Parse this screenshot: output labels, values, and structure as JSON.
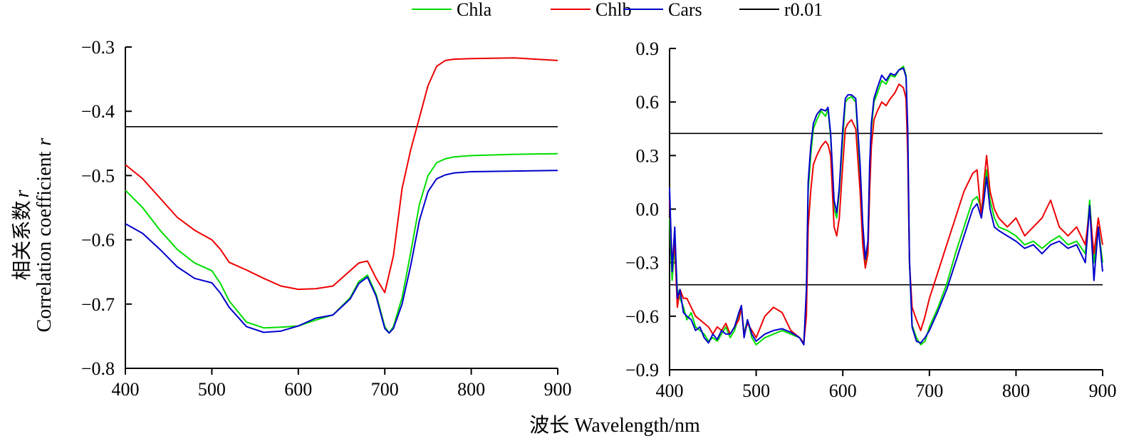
{
  "legend": [
    {
      "label": "Chla",
      "color": "#00dd00"
    },
    {
      "label": "Chlb",
      "color": "#ee0000"
    },
    {
      "label": "Cars",
      "color": "#0000cc"
    },
    {
      "label": "r0.01",
      "color": "#000000"
    }
  ],
  "ylabel_cn": "相关系数",
  "ylabel_en": "Correlation coefficient",
  "ylabel_var": "r",
  "xlabel": "波长 Wavelength/nm",
  "chart_data": [
    {
      "type": "line",
      "panel": "left",
      "xlim": [
        400,
        900
      ],
      "ylim": [
        -0.8,
        -0.3
      ],
      "xticks": [
        400,
        500,
        600,
        700,
        800,
        900
      ],
      "yticks": [
        -0.8,
        -0.7,
        -0.6,
        -0.5,
        -0.4,
        -0.3
      ],
      "xtick_labels": [
        "400",
        "500",
        "600",
        "700",
        "800",
        "900"
      ],
      "ytick_labels": [
        "−0.8",
        "−0.7",
        "−0.6",
        "−0.5",
        "−0.4",
        "−0.3"
      ],
      "hlines": [
        -0.424
      ],
      "series": [
        {
          "name": "Chla",
          "color": "#00dd00",
          "x": [
            400,
            420,
            440,
            460,
            480,
            500,
            510,
            520,
            540,
            560,
            580,
            600,
            620,
            640,
            660,
            670,
            680,
            690,
            700,
            705,
            710,
            720,
            730,
            740,
            750,
            760,
            770,
            780,
            800,
            850,
            900
          ],
          "y": [
            -0.523,
            -0.55,
            -0.585,
            -0.615,
            -0.636,
            -0.648,
            -0.668,
            -0.695,
            -0.728,
            -0.737,
            -0.736,
            -0.734,
            -0.725,
            -0.717,
            -0.69,
            -0.665,
            -0.655,
            -0.685,
            -0.735,
            -0.745,
            -0.735,
            -0.69,
            -0.62,
            -0.545,
            -0.5,
            -0.48,
            -0.474,
            -0.471,
            -0.469,
            -0.467,
            -0.466
          ]
        },
        {
          "name": "Chlb",
          "color": "#ee0000",
          "x": [
            400,
            420,
            440,
            460,
            480,
            500,
            510,
            520,
            540,
            560,
            580,
            600,
            620,
            640,
            660,
            670,
            680,
            690,
            700,
            710,
            720,
            730,
            740,
            750,
            760,
            770,
            780,
            800,
            850,
            900
          ],
          "y": [
            -0.483,
            -0.505,
            -0.535,
            -0.565,
            -0.585,
            -0.6,
            -0.615,
            -0.635,
            -0.647,
            -0.66,
            -0.672,
            -0.677,
            -0.676,
            -0.672,
            -0.648,
            -0.636,
            -0.633,
            -0.66,
            -0.682,
            -0.625,
            -0.52,
            -0.46,
            -0.41,
            -0.36,
            -0.33,
            -0.321,
            -0.319,
            -0.318,
            -0.317,
            -0.321
          ]
        },
        {
          "name": "Cars",
          "color": "#0000cc",
          "x": [
            400,
            420,
            440,
            460,
            480,
            500,
            510,
            520,
            540,
            560,
            580,
            600,
            620,
            640,
            660,
            670,
            680,
            690,
            700,
            705,
            710,
            720,
            730,
            740,
            750,
            760,
            770,
            780,
            800,
            850,
            900
          ],
          "y": [
            -0.575,
            -0.59,
            -0.615,
            -0.642,
            -0.66,
            -0.667,
            -0.683,
            -0.705,
            -0.735,
            -0.744,
            -0.742,
            -0.734,
            -0.722,
            -0.717,
            -0.692,
            -0.668,
            -0.658,
            -0.688,
            -0.738,
            -0.745,
            -0.738,
            -0.7,
            -0.64,
            -0.57,
            -0.525,
            -0.505,
            -0.499,
            -0.496,
            -0.494,
            -0.493,
            -0.492
          ]
        }
      ]
    },
    {
      "type": "line",
      "panel": "right",
      "xlim": [
        400,
        900
      ],
      "ylim": [
        -0.9,
        0.9
      ],
      "xticks": [
        400,
        500,
        600,
        700,
        800,
        900
      ],
      "yticks": [
        -0.9,
        -0.6,
        -0.3,
        0.0,
        0.3,
        0.6,
        0.9
      ],
      "xtick_labels": [
        "400",
        "500",
        "600",
        "700",
        "800",
        "900"
      ],
      "ytick_labels": [
        "−0.9",
        "−0.6",
        "−0.3",
        "0.0",
        "0.3",
        "0.6",
        "0.9"
      ],
      "hlines": [
        0.424,
        -0.424
      ],
      "series": [
        {
          "name": "Chla",
          "color": "#00dd00",
          "x": [
            400,
            403,
            406,
            409,
            412,
            416,
            420,
            425,
            430,
            435,
            440,
            445,
            450,
            455,
            460,
            465,
            470,
            475,
            480,
            483,
            486,
            490,
            495,
            500,
            505,
            510,
            520,
            530,
            540,
            550,
            555,
            558,
            560,
            563,
            566,
            570,
            575,
            580,
            583,
            586,
            590,
            593,
            596,
            600,
            603,
            606,
            610,
            615,
            620,
            623,
            626,
            629,
            631,
            633,
            636,
            640,
            645,
            650,
            655,
            660,
            665,
            670,
            673,
            675,
            677,
            680,
            685,
            690,
            695,
            700,
            710,
            720,
            730,
            740,
            750,
            755,
            760,
            763,
            766,
            770,
            775,
            780,
            790,
            800,
            810,
            820,
            830,
            840,
            850,
            860,
            870,
            880,
            885,
            890,
            895,
            900
          ],
          "y": [
            -0.05,
            -0.4,
            -0.2,
            -0.45,
            -0.5,
            -0.55,
            -0.62,
            -0.58,
            -0.66,
            -0.68,
            -0.7,
            -0.74,
            -0.72,
            -0.74,
            -0.7,
            -0.66,
            -0.72,
            -0.68,
            -0.6,
            -0.56,
            -0.7,
            -0.62,
            -0.72,
            -0.76,
            -0.74,
            -0.72,
            -0.7,
            -0.68,
            -0.7,
            -0.72,
            -0.75,
            -0.5,
            0.1,
            0.3,
            0.45,
            0.5,
            0.55,
            0.52,
            0.56,
            0.4,
            0.0,
            -0.05,
            0.1,
            0.4,
            0.6,
            0.62,
            0.63,
            0.6,
            0.2,
            -0.1,
            -0.3,
            -0.2,
            0.2,
            0.45,
            0.6,
            0.65,
            0.72,
            0.7,
            0.75,
            0.74,
            0.78,
            0.8,
            0.75,
            0.4,
            -0.3,
            -0.65,
            -0.72,
            -0.76,
            -0.74,
            -0.66,
            -0.55,
            -0.42,
            -0.25,
            -0.1,
            0.05,
            0.07,
            0.0,
            0.1,
            0.22,
            0.05,
            -0.05,
            -0.1,
            -0.12,
            -0.15,
            -0.2,
            -0.18,
            -0.22,
            -0.18,
            -0.15,
            -0.2,
            -0.18,
            -0.25,
            0.05,
            -0.3,
            -0.1,
            -0.3
          ]
        },
        {
          "name": "Chlb",
          "color": "#ee0000",
          "x": [
            400,
            403,
            406,
            409,
            412,
            416,
            420,
            425,
            430,
            435,
            440,
            445,
            450,
            455,
            460,
            465,
            470,
            475,
            480,
            483,
            486,
            490,
            495,
            500,
            505,
            510,
            520,
            530,
            540,
            550,
            555,
            558,
            560,
            563,
            566,
            570,
            575,
            580,
            583,
            586,
            590,
            593,
            596,
            600,
            603,
            606,
            610,
            615,
            620,
            623,
            626,
            629,
            631,
            633,
            636,
            640,
            645,
            650,
            655,
            660,
            665,
            670,
            673,
            675,
            677,
            680,
            685,
            690,
            695,
            700,
            710,
            720,
            730,
            740,
            750,
            755,
            760,
            763,
            766,
            770,
            775,
            780,
            790,
            800,
            810,
            820,
            830,
            840,
            850,
            860,
            870,
            880,
            885,
            890,
            895,
            900
          ],
          "y": [
            0.05,
            -0.3,
            -0.2,
            -0.55,
            -0.45,
            -0.5,
            -0.5,
            -0.55,
            -0.6,
            -0.62,
            -0.64,
            -0.66,
            -0.7,
            -0.66,
            -0.68,
            -0.64,
            -0.7,
            -0.66,
            -0.62,
            -0.55,
            -0.7,
            -0.64,
            -0.68,
            -0.72,
            -0.66,
            -0.6,
            -0.55,
            -0.58,
            -0.68,
            -0.72,
            -0.75,
            -0.6,
            -0.1,
            0.1,
            0.25,
            0.3,
            0.35,
            0.38,
            0.36,
            0.3,
            -0.1,
            -0.15,
            -0.05,
            0.25,
            0.45,
            0.48,
            0.5,
            0.45,
            0.1,
            -0.2,
            -0.33,
            -0.25,
            0.1,
            0.35,
            0.5,
            0.55,
            0.6,
            0.58,
            0.62,
            0.65,
            0.7,
            0.68,
            0.62,
            0.3,
            -0.3,
            -0.55,
            -0.62,
            -0.68,
            -0.6,
            -0.5,
            -0.35,
            -0.2,
            -0.05,
            0.1,
            0.2,
            0.22,
            -0.05,
            0.15,
            0.3,
            0.1,
            0.0,
            -0.05,
            -0.1,
            -0.05,
            -0.15,
            -0.1,
            -0.05,
            0.05,
            -0.1,
            -0.15,
            -0.1,
            -0.2,
            0.0,
            -0.25,
            -0.05,
            -0.2
          ]
        },
        {
          "name": "Cars",
          "color": "#0000cc",
          "x": [
            400,
            403,
            406,
            409,
            412,
            416,
            420,
            425,
            430,
            435,
            440,
            445,
            450,
            455,
            460,
            465,
            470,
            475,
            480,
            483,
            486,
            490,
            495,
            500,
            505,
            510,
            520,
            530,
            540,
            550,
            555,
            558,
            560,
            563,
            566,
            570,
            575,
            580,
            583,
            586,
            590,
            593,
            596,
            600,
            603,
            606,
            610,
            615,
            620,
            623,
            626,
            629,
            631,
            633,
            636,
            640,
            645,
            650,
            655,
            660,
            665,
            670,
            673,
            675,
            677,
            680,
            685,
            690,
            695,
            700,
            710,
            720,
            730,
            740,
            750,
            755,
            760,
            763,
            766,
            770,
            775,
            780,
            790,
            800,
            810,
            820,
            830,
            840,
            850,
            860,
            870,
            880,
            885,
            890,
            895,
            900
          ],
          "y": [
            0.12,
            -0.35,
            -0.1,
            -0.5,
            -0.45,
            -0.58,
            -0.6,
            -0.62,
            -0.68,
            -0.66,
            -0.72,
            -0.75,
            -0.7,
            -0.73,
            -0.68,
            -0.7,
            -0.7,
            -0.66,
            -0.58,
            -0.54,
            -0.72,
            -0.62,
            -0.7,
            -0.74,
            -0.72,
            -0.7,
            -0.68,
            -0.67,
            -0.69,
            -0.72,
            -0.76,
            -0.45,
            0.15,
            0.35,
            0.48,
            0.53,
            0.56,
            0.55,
            0.57,
            0.42,
            0.05,
            -0.02,
            0.12,
            0.45,
            0.62,
            0.64,
            0.64,
            0.62,
            0.25,
            -0.08,
            -0.28,
            -0.18,
            0.25,
            0.48,
            0.62,
            0.68,
            0.75,
            0.72,
            0.76,
            0.75,
            0.78,
            0.79,
            0.74,
            0.45,
            -0.28,
            -0.66,
            -0.74,
            -0.75,
            -0.72,
            -0.68,
            -0.57,
            -0.45,
            -0.3,
            -0.15,
            0.0,
            0.03,
            -0.05,
            0.05,
            0.18,
            0.0,
            -0.1,
            -0.12,
            -0.15,
            -0.18,
            -0.22,
            -0.2,
            -0.25,
            -0.2,
            -0.18,
            -0.22,
            -0.2,
            -0.3,
            0.02,
            -0.4,
            -0.1,
            -0.35
          ]
        }
      ]
    }
  ]
}
